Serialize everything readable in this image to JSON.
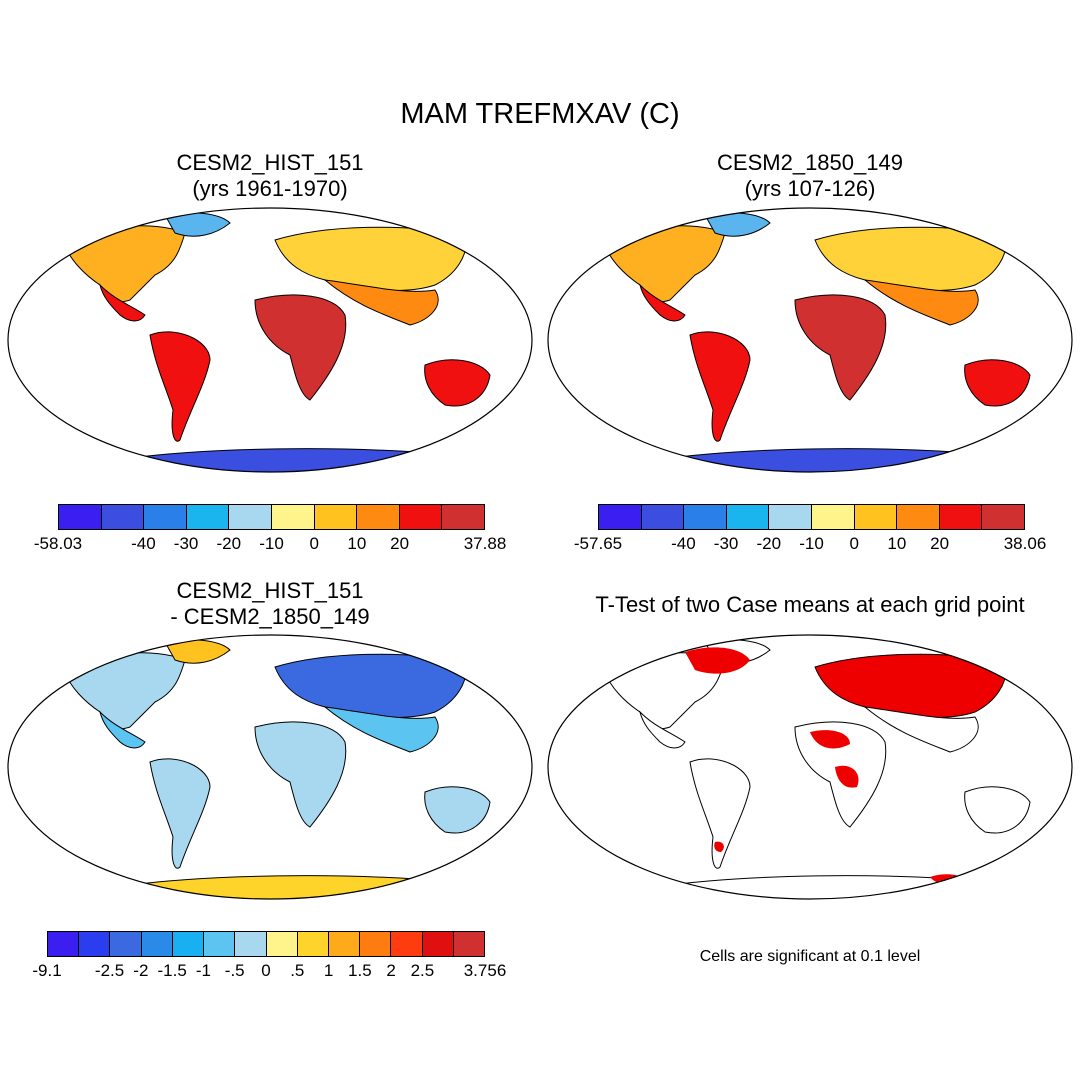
{
  "figure": {
    "title": "MAM TREFMXAV (C)"
  },
  "panels": [
    {
      "title1": "CESM2_HIST_151",
      "title2": "(yrs 1961-1970)",
      "colorbar": {
        "ticks": [
          "-58.03",
          "-40",
          "-30",
          "-20",
          "-10",
          "0",
          "10",
          "20",
          "37.88"
        ],
        "colors": [
          "#3a1ff0",
          "#3b4ee0",
          "#2a7fe8",
          "#1ab4ee",
          "#a8d8f0",
          "#fff48c",
          "#ffc21f",
          "#ff8a12",
          "#f01010",
          "#d03030"
        ]
      }
    },
    {
      "title1": "CESM2_1850_149",
      "title2": "(yrs 107-126)",
      "colorbar": {
        "ticks": [
          "-57.65",
          "-40",
          "-30",
          "-20",
          "-10",
          "0",
          "10",
          "20",
          "38.06"
        ],
        "colors": [
          "#3a1ff0",
          "#3b4ee0",
          "#2a7fe8",
          "#1ab4ee",
          "#a8d8f0",
          "#fff48c",
          "#ffc21f",
          "#ff8a12",
          "#f01010",
          "#d03030"
        ]
      }
    },
    {
      "title1": "CESM2_HIST_151",
      "title2": "- CESM2_1850_149",
      "colorbar": {
        "ticks": [
          "-9.1",
          "-2.5",
          "-2",
          "-1.5",
          "-1",
          "-.5",
          "0",
          ".5",
          "1",
          "1.5",
          "2",
          "2.5",
          "3.756"
        ],
        "colors": [
          "#3a1ff0",
          "#2a3ef0",
          "#3b6ae0",
          "#2a8ae8",
          "#18b0f0",
          "#5cc4f0",
          "#a8d8f0",
          "#fff48c",
          "#ffd42a",
          "#ffaa1a",
          "#ff7d10",
          "#ff3c10",
          "#e01010",
          "#d03030"
        ]
      }
    },
    {
      "title1": "T-Test of two Case means at each grid point",
      "note": "Cells are significant at 0.1 level"
    }
  ]
}
